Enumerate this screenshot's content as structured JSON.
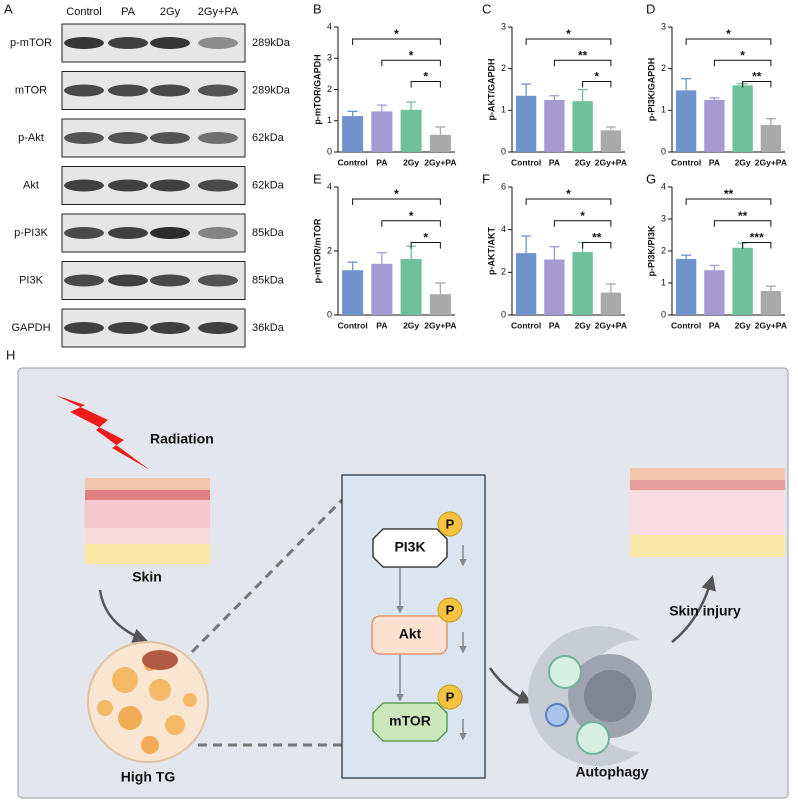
{
  "panel_a": {
    "label": "A",
    "lanes": [
      "Control",
      "PA",
      "2Gy",
      "2Gy+PA"
    ],
    "rows": [
      {
        "name": "p-mTOR",
        "size": "289kDa"
      },
      {
        "name": "mTOR",
        "size": "289kDa"
      },
      {
        "name": "p-Akt",
        "size": "62kDa"
      },
      {
        "name": "Akt",
        "size": "62kDa"
      },
      {
        "name": "p-PI3K",
        "size": "85kDa"
      },
      {
        "name": "PI3K",
        "size": "85kDa"
      },
      {
        "name": "GAPDH",
        "size": "36kDa"
      }
    ]
  },
  "chart_data": [
    {
      "panel": "B",
      "type": "bar",
      "y_label": "p-mTOR/GAPDH",
      "categories": [
        "Control",
        "PA",
        "2Gy",
        "2Gy+PA"
      ],
      "values": [
        1.15,
        1.3,
        1.35,
        0.55
      ],
      "errors": [
        0.15,
        0.2,
        0.25,
        0.25
      ],
      "colors": [
        "#6f93cc",
        "#a59ad2",
        "#6fc09c",
        "#a9a9a9"
      ],
      "ylim": [
        0,
        4
      ],
      "yticks": [
        0,
        1,
        2,
        3,
        4
      ],
      "annotations": [
        "*",
        "*",
        "*"
      ]
    },
    {
      "panel": "C",
      "type": "bar",
      "y_label": "p-AKT/GAPDH",
      "categories": [
        "Control",
        "PA",
        "2Gy",
        "2Gy+PA"
      ],
      "values": [
        1.35,
        1.25,
        1.22,
        0.52
      ],
      "errors": [
        0.28,
        0.1,
        0.28,
        0.08
      ],
      "colors": [
        "#6f93cc",
        "#a59ad2",
        "#6fc09c",
        "#a9a9a9"
      ],
      "ylim": [
        0,
        3
      ],
      "yticks": [
        0,
        1,
        2,
        3
      ],
      "annotations": [
        "*",
        "**",
        "*"
      ]
    },
    {
      "panel": "D",
      "type": "bar",
      "y_label": "p-PI3K/GAPDH",
      "categories": [
        "Control",
        "PA",
        "2Gy",
        "2Gy+PA"
      ],
      "values": [
        1.48,
        1.25,
        1.6,
        0.65
      ],
      "errors": [
        0.28,
        0.05,
        0.04,
        0.15
      ],
      "colors": [
        "#6f93cc",
        "#a59ad2",
        "#6fc09c",
        "#a9a9a9"
      ],
      "ylim": [
        0,
        3
      ],
      "yticks": [
        0,
        1,
        2,
        3
      ],
      "annotations": [
        "*",
        "*",
        "**"
      ]
    },
    {
      "panel": "E",
      "type": "bar",
      "y_label": "p-mTOR/mTOR",
      "categories": [
        "Control",
        "PA",
        "2Gy",
        "2Gy+PA"
      ],
      "values": [
        1.4,
        1.6,
        1.75,
        0.65
      ],
      "errors": [
        0.25,
        0.35,
        0.4,
        0.35
      ],
      "colors": [
        "#6f93cc",
        "#a59ad2",
        "#6fc09c",
        "#a9a9a9"
      ],
      "ylim": [
        0,
        4
      ],
      "yticks": [
        0,
        2,
        4
      ],
      "annotations": [
        "*",
        "*",
        "*"
      ]
    },
    {
      "panel": "F",
      "type": "bar",
      "y_label": "p-AKT/AKT",
      "categories": [
        "Control",
        "PA",
        "2Gy",
        "2Gy+PA"
      ],
      "values": [
        2.9,
        2.6,
        2.95,
        1.05
      ],
      "errors": [
        0.8,
        0.6,
        0.45,
        0.4
      ],
      "colors": [
        "#6f93cc",
        "#a59ad2",
        "#6fc09c",
        "#a9a9a9"
      ],
      "ylim": [
        0,
        6
      ],
      "yticks": [
        0,
        2,
        4,
        6
      ],
      "annotations": [
        "*",
        "*",
        "**"
      ]
    },
    {
      "panel": "G",
      "type": "bar",
      "y_label": "p-PI3K/PI3K",
      "categories": [
        "Control",
        "PA",
        "2Gy",
        "2Gy+PA"
      ],
      "values": [
        1.75,
        1.4,
        2.1,
        0.75
      ],
      "errors": [
        0.12,
        0.15,
        0.15,
        0.15
      ],
      "colors": [
        "#6f93cc",
        "#a59ad2",
        "#6fc09c",
        "#a9a9a9"
      ],
      "ylim": [
        0,
        4
      ],
      "yticks": [
        0,
        1,
        2,
        3,
        4
      ],
      "annotations": [
        "**",
        "**",
        "***"
      ]
    }
  ],
  "panel_h": {
    "label": "H",
    "radiation": "Radiation",
    "skin": "Skin",
    "high_tg": "High TG",
    "pi3k": "PI3K",
    "akt": "Akt",
    "mtor": "mTOR",
    "p": [
      "P",
      "P",
      "P"
    ],
    "autophagy": "Autophagy",
    "skin_injury": "Skin injury"
  }
}
